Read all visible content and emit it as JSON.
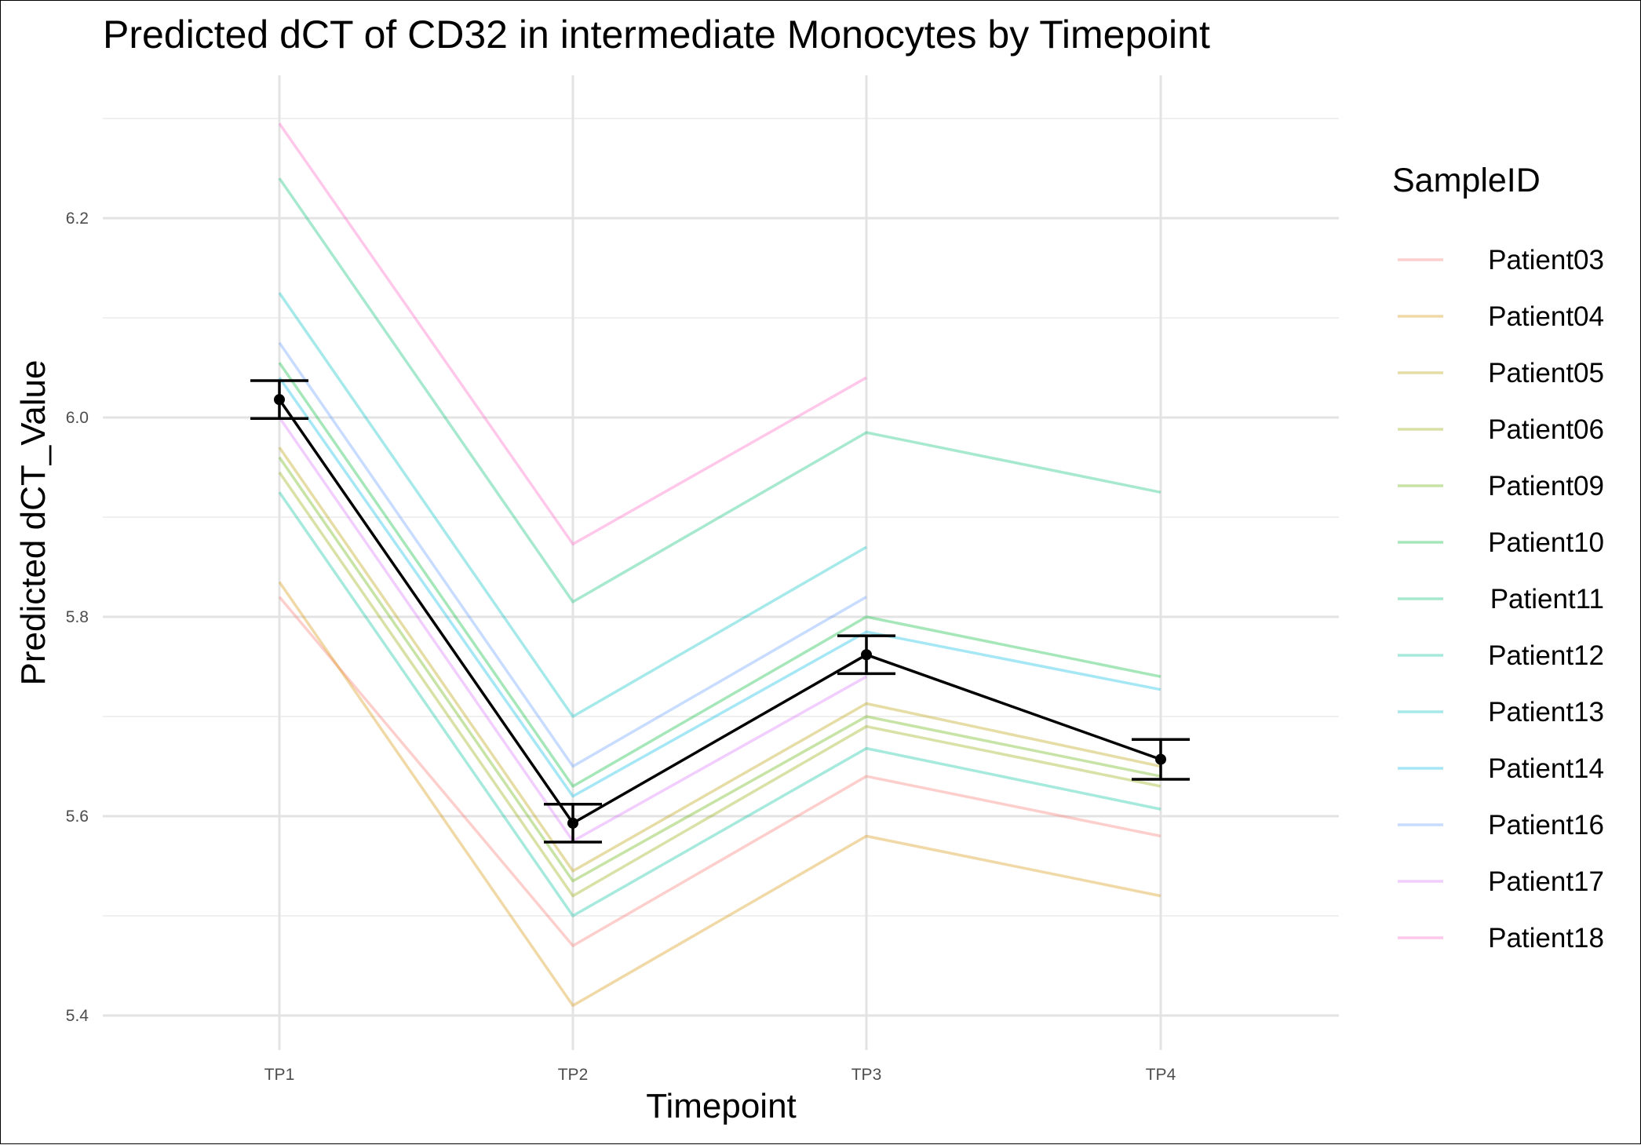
{
  "chart_data": {
    "type": "line",
    "title": "Predicted dCT of  CD32 in  intermediate  Monocytes by Timepoint",
    "xlabel": "Timepoint",
    "ylabel": "Predicted dCT_Value",
    "categories": [
      "TP1",
      "TP2",
      "TP3",
      "TP4"
    ],
    "ylim": [
      5.35,
      6.31
    ],
    "yticks": [
      5.4,
      5.6,
      5.8,
      6.0,
      6.2
    ],
    "ytick_labels": [
      "5.4",
      "5.6",
      "5.8",
      "6.0",
      "6.2"
    ],
    "grid": true,
    "legend": {
      "title": "SampleID",
      "position": "right"
    },
    "series": [
      {
        "name": "Patient03",
        "color": "#F8766D",
        "values": [
          5.82,
          5.47,
          5.64,
          5.58
        ]
      },
      {
        "name": "Patient04",
        "color": "#D39200",
        "values": [
          5.835,
          5.41,
          5.58,
          5.52
        ]
      },
      {
        "name": "Patient05",
        "color": "#B79F00",
        "values": [
          5.97,
          5.545,
          5.713,
          5.65
        ]
      },
      {
        "name": "Patient06",
        "color": "#93AA00",
        "values": [
          5.945,
          5.52,
          5.69,
          5.63
        ]
      },
      {
        "name": "Patient09",
        "color": "#5EB300",
        "values": [
          5.96,
          5.535,
          5.7,
          5.64
        ]
      },
      {
        "name": "Patient10",
        "color": "#00BA38",
        "values": [
          6.055,
          5.63,
          5.8,
          5.74
        ]
      },
      {
        "name": "Patient11",
        "color": "#00BF74",
        "values": [
          6.24,
          5.815,
          5.985,
          5.925
        ]
      },
      {
        "name": "Patient12",
        "color": "#00C19F",
        "values": [
          5.925,
          5.5,
          5.668,
          5.607
        ]
      },
      {
        "name": "Patient13",
        "color": "#00BFC4",
        "values": [
          6.125,
          5.7,
          5.87,
          null
        ]
      },
      {
        "name": "Patient14",
        "color": "#00B9E3",
        "values": [
          6.04,
          5.62,
          5.785,
          5.727
        ]
      },
      {
        "name": "Patient16",
        "color": "#619CFF",
        "values": [
          6.075,
          5.65,
          5.82,
          null
        ]
      },
      {
        "name": "Patient17",
        "color": "#DB72FB",
        "values": [
          6.0,
          5.575,
          5.74,
          null
        ]
      },
      {
        "name": "Patient18",
        "color": "#FF61C3",
        "values": [
          6.295,
          5.873,
          6.04,
          null
        ]
      }
    ],
    "mean_series": {
      "color": "#000000",
      "values": [
        6.018,
        5.593,
        5.762,
        5.657
      ],
      "error": [
        0.019,
        0.019,
        0.019,
        0.02
      ]
    }
  }
}
